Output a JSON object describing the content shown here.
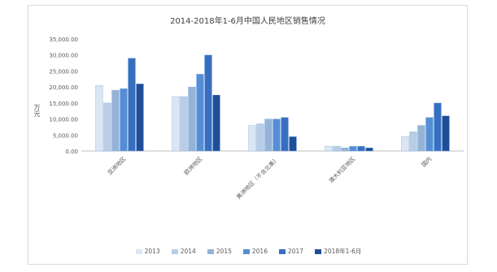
{
  "chart_data": {
    "type": "bar",
    "title": "2014-2018年1-6月中国人民地区销售情况",
    "ylabel": "万元",
    "xlabel": "",
    "ylim": [
      0,
      35000
    ],
    "yticks": [
      "0.00",
      "5,000.00",
      "10,000.00",
      "15,000.00",
      "20,000.00",
      "25,000.00",
      "30,000.00",
      "35,000.00"
    ],
    "categories": [
      "亚洲地区",
      "欧洲地区",
      "美洲地区（不含北美）",
      "澳大利亚地区",
      "国内"
    ],
    "series": [
      {
        "name": "2013",
        "color": "#dce6f2",
        "values": [
          20500,
          17000,
          8000,
          1500,
          4500
        ]
      },
      {
        "name": "2014",
        "color": "#b9cde5",
        "values": [
          15000,
          17000,
          8500,
          1500,
          6000
        ]
      },
      {
        "name": "2015",
        "color": "#95b3d7",
        "values": [
          19000,
          20000,
          10000,
          1000,
          8000
        ]
      },
      {
        "name": "2016",
        "color": "#558ed5",
        "values": [
          19500,
          24000,
          10000,
          1500,
          10500
        ]
      },
      {
        "name": "2017",
        "color": "#376fc0",
        "values": [
          29000,
          30000,
          10500,
          1500,
          15000
        ]
      },
      {
        "name": "2018年1-6月",
        "color": "#1f4e99",
        "values": [
          21000,
          17500,
          4500,
          1000,
          11000
        ]
      }
    ],
    "legend_position": "bottom",
    "grid": false
  }
}
